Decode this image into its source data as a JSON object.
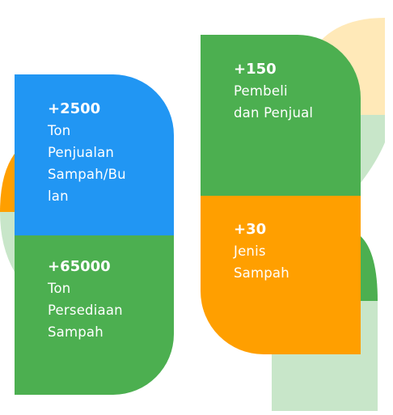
{
  "colors": {
    "blue": "#2196F3",
    "green": "#4CAF50",
    "orange": "#FF9F00",
    "light_yellow": "#FFE9B8",
    "light_green": "#C8E6C9",
    "text": "#FFFFFF"
  },
  "stats": [
    {
      "value": "+2500",
      "label_lines": [
        "Ton",
        "Penjualan",
        "Sampah/Bu",
        "lan"
      ]
    },
    {
      "value": "+65000",
      "label_lines": [
        "Ton",
        "Persediaan",
        "Sampah"
      ]
    },
    {
      "value": "+150",
      "label_lines": [
        "Pembeli",
        "dan Penjual"
      ]
    },
    {
      "value": "+30",
      "label_lines": [
        "Jenis",
        "Sampah"
      ]
    }
  ]
}
